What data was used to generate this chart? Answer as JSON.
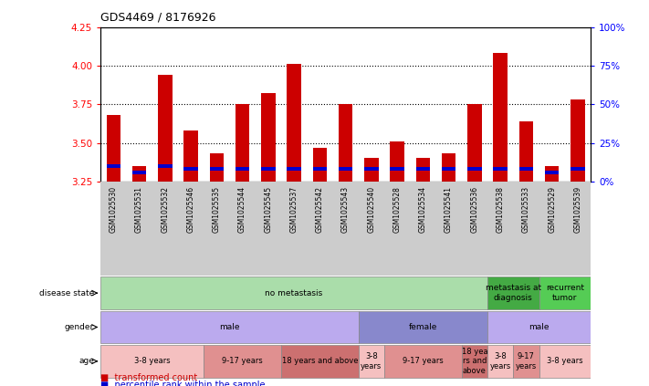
{
  "title": "GDS4469 / 8176926",
  "samples": [
    "GSM1025530",
    "GSM1025531",
    "GSM1025532",
    "GSM1025546",
    "GSM1025535",
    "GSM1025544",
    "GSM1025545",
    "GSM1025537",
    "GSM1025542",
    "GSM1025543",
    "GSM1025540",
    "GSM1025528",
    "GSM1025534",
    "GSM1025541",
    "GSM1025536",
    "GSM1025538",
    "GSM1025533",
    "GSM1025529",
    "GSM1025539"
  ],
  "red_values": [
    3.68,
    3.35,
    3.94,
    3.58,
    3.43,
    3.75,
    3.82,
    4.01,
    3.47,
    3.75,
    3.4,
    3.51,
    3.4,
    3.43,
    3.75,
    4.08,
    3.64,
    3.35,
    3.78
  ],
  "blue_values": [
    10,
    6,
    10,
    8,
    8,
    8,
    8,
    8,
    8,
    8,
    8,
    8,
    8,
    8,
    8,
    8,
    8,
    6,
    8
  ],
  "ylim_left": [
    3.25,
    4.25
  ],
  "ylim_right": [
    0,
    100
  ],
  "yticks_left": [
    3.25,
    3.5,
    3.75,
    4.0,
    4.25
  ],
  "yticks_right": [
    0,
    25,
    50,
    75,
    100
  ],
  "ytick_labels_right": [
    "0%",
    "25%",
    "50%",
    "75%",
    "100%"
  ],
  "bar_color": "#cc0000",
  "blue_color": "#0000cc",
  "disease_state_rows": [
    {
      "label": "no metastasis",
      "start": 0,
      "end": 15,
      "color": "#aaddaa"
    },
    {
      "label": "metastasis at\ndiagnosis",
      "start": 15,
      "end": 17,
      "color": "#44aa44"
    },
    {
      "label": "recurrent\ntumor",
      "start": 17,
      "end": 19,
      "color": "#55cc55"
    }
  ],
  "gender_rows": [
    {
      "label": "male",
      "start": 0,
      "end": 10,
      "color": "#bbaaee"
    },
    {
      "label": "female",
      "start": 10,
      "end": 15,
      "color": "#8888cc"
    },
    {
      "label": "male",
      "start": 15,
      "end": 19,
      "color": "#bbaaee"
    }
  ],
  "age_rows": [
    {
      "label": "3-8 years",
      "start": 0,
      "end": 4,
      "color": "#f5c0c0"
    },
    {
      "label": "9-17 years",
      "start": 4,
      "end": 7,
      "color": "#e09090"
    },
    {
      "label": "18 years and above",
      "start": 7,
      "end": 10,
      "color": "#cc7070"
    },
    {
      "label": "3-8\nyears",
      "start": 10,
      "end": 11,
      "color": "#f5c0c0"
    },
    {
      "label": "9-17 years",
      "start": 11,
      "end": 14,
      "color": "#e09090"
    },
    {
      "label": "18 yea\nrs and\nabove",
      "start": 14,
      "end": 15,
      "color": "#cc7070"
    },
    {
      "label": "3-8\nyears",
      "start": 15,
      "end": 16,
      "color": "#f5c0c0"
    },
    {
      "label": "9-17\nyears",
      "start": 16,
      "end": 17,
      "color": "#e09090"
    },
    {
      "label": "3-8 years",
      "start": 17,
      "end": 19,
      "color": "#f5c0c0"
    }
  ],
  "row_labels": [
    "disease state",
    "gender",
    "age"
  ],
  "legend_items": [
    {
      "label": "transformed count",
      "color": "#cc0000"
    },
    {
      "label": "percentile rank within the sample",
      "color": "#0000cc"
    }
  ],
  "grid_yticks": [
    3.5,
    3.75,
    4.0
  ],
  "bar_width": 0.55
}
